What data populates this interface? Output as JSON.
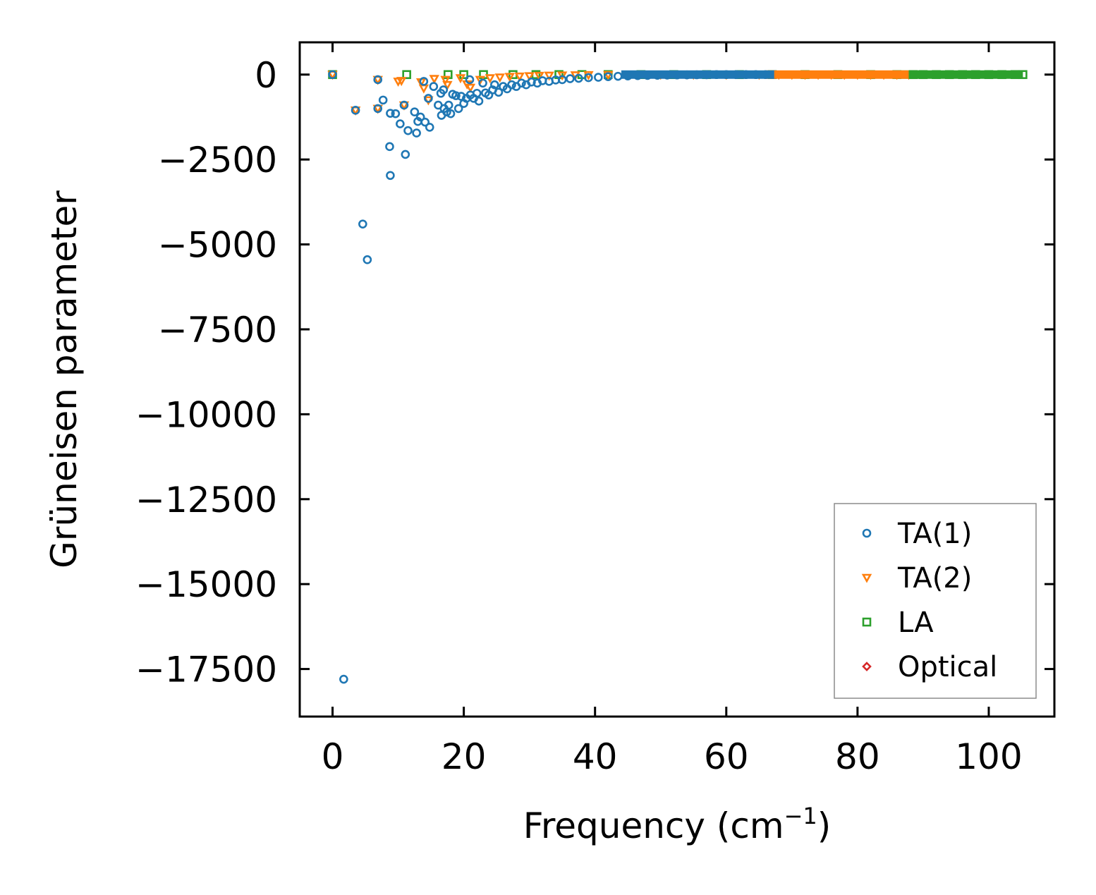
{
  "chart_data": {
    "type": "scatter",
    "title": "",
    "xlabel": "Frequency (cm",
    "xlabel_superscript": "−1",
    "xlabel_suffix": ")",
    "ylabel": "Grüneisen parameter",
    "xlim": [
      -5,
      110
    ],
    "ylim": [
      -18900,
      950
    ],
    "x_ticks": [
      0,
      20,
      40,
      60,
      80,
      100
    ],
    "x_tick_labels": [
      "0",
      "20",
      "40",
      "60",
      "80",
      "100"
    ],
    "y_ticks": [
      0,
      -2500,
      -5000,
      -7500,
      -10000,
      -12500,
      -15000,
      -17500
    ],
    "y_tick_labels": [
      "0",
      "−2500",
      "−5000",
      "−7500",
      "−10000",
      "−12500",
      "−15000",
      "−17500"
    ],
    "grid": false,
    "legend_position": "lower-right",
    "series": [
      {
        "name": "TA(1)",
        "marker": "circle",
        "color": "#1f77b4",
        "points": [
          [
            0.0,
            0
          ],
          [
            1.7,
            -17800
          ],
          [
            3.5,
            -1050
          ],
          [
            4.6,
            -4400
          ],
          [
            5.3,
            -5450
          ],
          [
            6.9,
            -150
          ],
          [
            6.9,
            -1000
          ],
          [
            7.7,
            -750
          ],
          [
            8.7,
            -2120
          ],
          [
            8.8,
            -1140
          ],
          [
            8.8,
            -2970
          ],
          [
            9.6,
            -1150
          ],
          [
            10.3,
            -1450
          ],
          [
            10.9,
            -900
          ],
          [
            11.1,
            -2350
          ],
          [
            11.5,
            -1650
          ],
          [
            12.5,
            -1100
          ],
          [
            12.8,
            -1720
          ],
          [
            13.0,
            -1380
          ],
          [
            13.4,
            -1250
          ],
          [
            13.9,
            -200
          ],
          [
            14.1,
            -1400
          ],
          [
            14.6,
            -700
          ],
          [
            14.8,
            -1550
          ],
          [
            15.4,
            -350
          ],
          [
            16.1,
            -900
          ],
          [
            16.5,
            -550
          ],
          [
            16.6,
            -1200
          ],
          [
            16.9,
            -450
          ],
          [
            17.0,
            -1000
          ],
          [
            17.4,
            -1100
          ],
          [
            17.7,
            -900
          ],
          [
            18.0,
            -1150
          ],
          [
            18.3,
            -580
          ],
          [
            18.8,
            -620
          ],
          [
            19.2,
            -1000
          ],
          [
            19.6,
            -640
          ],
          [
            20.0,
            -850
          ],
          [
            20.4,
            -700
          ],
          [
            20.9,
            -150
          ],
          [
            21.0,
            -600
          ],
          [
            21.5,
            -700
          ],
          [
            22.0,
            -550
          ],
          [
            22.3,
            -780
          ],
          [
            22.9,
            -250
          ],
          [
            23.3,
            -540
          ],
          [
            23.8,
            -600
          ],
          [
            24.4,
            -450
          ],
          [
            24.7,
            -300
          ],
          [
            25.3,
            -520
          ],
          [
            26.0,
            -350
          ],
          [
            26.6,
            -420
          ],
          [
            27.3,
            -300
          ],
          [
            28.0,
            -350
          ],
          [
            28.8,
            -250
          ],
          [
            29.5,
            -300
          ],
          [
            30.3,
            -220
          ],
          [
            31.2,
            -250
          ],
          [
            32.0,
            -180
          ],
          [
            33.0,
            -200
          ],
          [
            34.0,
            -160
          ],
          [
            35.0,
            -150
          ],
          [
            36.2,
            -120
          ],
          [
            37.5,
            -110
          ],
          [
            39.0,
            -90
          ],
          [
            40.5,
            -80
          ],
          [
            42.0,
            -60
          ],
          [
            43.5,
            -50
          ],
          [
            45.0,
            -40
          ],
          [
            46.5,
            -30
          ],
          [
            48.0,
            -25
          ],
          [
            49.5,
            -20
          ],
          [
            51.0,
            -15
          ],
          [
            52.5,
            -10
          ],
          [
            54.0,
            -8
          ],
          [
            55.5,
            -5
          ],
          [
            57.0,
            -3
          ],
          [
            58.5,
            0
          ],
          [
            60.0,
            0
          ],
          [
            61.5,
            0
          ],
          [
            63.0,
            0
          ],
          [
            64.5,
            0
          ],
          [
            66.0,
            0
          ],
          [
            67.3,
            0
          ]
        ]
      },
      {
        "name": "TA(2)",
        "marker": "triangle-down",
        "color": "#ff7f0e",
        "points": [
          [
            0.0,
            0
          ],
          [
            3.5,
            -1050
          ],
          [
            6.9,
            -150
          ],
          [
            6.9,
            -1000
          ],
          [
            10.0,
            -200
          ],
          [
            10.5,
            -180
          ],
          [
            10.9,
            -900
          ],
          [
            13.5,
            -220
          ],
          [
            13.9,
            -400
          ],
          [
            14.6,
            -750
          ],
          [
            15.5,
            -120
          ],
          [
            17.2,
            -150
          ],
          [
            17.5,
            -300
          ],
          [
            19.5,
            -100
          ],
          [
            20.5,
            -280
          ],
          [
            21.0,
            -380
          ],
          [
            22.5,
            -150
          ],
          [
            24.0,
            -100
          ],
          [
            25.5,
            -80
          ],
          [
            27.0,
            -60
          ],
          [
            28.5,
            -50
          ],
          [
            30.0,
            -40
          ],
          [
            31.5,
            -30
          ],
          [
            33.0,
            -25
          ],
          [
            35.0,
            -20
          ],
          [
            37.0,
            -15
          ],
          [
            39.0,
            -10
          ],
          [
            42.0,
            -5
          ],
          [
            45.0,
            -3
          ],
          [
            50.0,
            0
          ],
          [
            55.0,
            0
          ],
          [
            60.0,
            0
          ],
          [
            65.0,
            0
          ],
          [
            68.0,
            0
          ],
          [
            70.0,
            0
          ],
          [
            72.0,
            0
          ],
          [
            74.0,
            0
          ],
          [
            76.0,
            0
          ],
          [
            78.0,
            0
          ],
          [
            80.0,
            0
          ],
          [
            82.0,
            0
          ],
          [
            84.0,
            0
          ],
          [
            86.0,
            0
          ],
          [
            87.8,
            0
          ]
        ]
      },
      {
        "name": "LA",
        "marker": "square",
        "color": "#2ca02c",
        "points": [
          [
            0.0,
            0
          ],
          [
            11.3,
            0
          ],
          [
            17.6,
            0
          ],
          [
            20.0,
            0
          ],
          [
            23.0,
            0
          ],
          [
            27.5,
            0
          ],
          [
            31.0,
            0
          ],
          [
            34.5,
            0
          ],
          [
            38.0,
            0
          ],
          [
            42.0,
            0
          ],
          [
            47.0,
            0
          ],
          [
            52.0,
            0
          ],
          [
            57.0,
            0
          ],
          [
            62.0,
            0
          ],
          [
            67.0,
            0
          ],
          [
            72.0,
            0
          ],
          [
            77.0,
            0
          ],
          [
            82.0,
            0
          ],
          [
            86.0,
            0
          ],
          [
            88.5,
            0
          ],
          [
            90.0,
            0
          ],
          [
            92.0,
            0
          ],
          [
            94.0,
            0
          ],
          [
            96.0,
            0
          ],
          [
            98.0,
            0
          ],
          [
            100.0,
            0
          ],
          [
            102.0,
            0
          ],
          [
            104.0,
            0
          ],
          [
            105.2,
            0
          ]
        ]
      },
      {
        "name": "Optical",
        "marker": "diamond",
        "color": "#d62728",
        "points": []
      }
    ]
  }
}
